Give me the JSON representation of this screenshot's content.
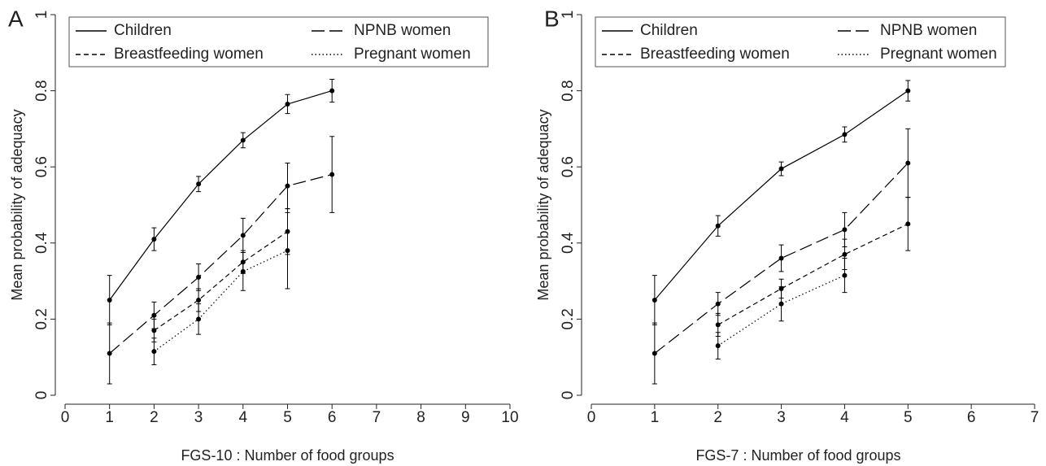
{
  "chart_data": [
    {
      "type": "line",
      "panel_label": "A",
      "xlabel": "FGS-10 : Number of food groups",
      "ylabel": "Mean probability of adequacy",
      "x": [
        1,
        2,
        3,
        4,
        5,
        6
      ],
      "series": [
        {
          "name": "Children",
          "color": "#000000",
          "line_style": "solid",
          "values": [
            0.25,
            0.41,
            0.555,
            0.67,
            0.765,
            0.8
          ],
          "errors": [
            0.065,
            0.03,
            0.02,
            0.02,
            0.025,
            0.03
          ]
        },
        {
          "name": "NPNB women",
          "color": "#000000",
          "line_style": "longdash",
          "values": [
            0.11,
            0.21,
            0.31,
            0.42,
            0.55,
            0.58
          ],
          "errors": [
            0.08,
            0.035,
            0.035,
            0.045,
            0.06,
            0.1
          ]
        },
        {
          "name": "Breastfeeding women",
          "color": "#000000",
          "line_style": "dash",
          "values": [
            null,
            0.17,
            0.25,
            0.35,
            0.43,
            null
          ],
          "errors": [
            null,
            0.03,
            0.03,
            0.03,
            0.06,
            null
          ]
        },
        {
          "name": "Pregnant women",
          "color": "#000000",
          "line_style": "dot",
          "values": [
            null,
            0.115,
            0.2,
            0.325,
            0.38,
            null
          ],
          "errors": [
            null,
            0.035,
            0.04,
            0.05,
            0.1,
            null
          ]
        }
      ],
      "xlim": [
        0,
        10
      ],
      "xticks": [
        0,
        1,
        2,
        3,
        4,
        5,
        6,
        7,
        8,
        9,
        10
      ],
      "ylim": [
        0,
        1
      ],
      "yticks": [
        0,
        0.2,
        0.4,
        0.6,
        0.8,
        1
      ],
      "legend": "top-left"
    },
    {
      "type": "line",
      "panel_label": "B",
      "xlabel": "FGS-7 : Number of food groups",
      "ylabel": "Mean probability of adequacy",
      "x": [
        1,
        2,
        3,
        4,
        5
      ],
      "series": [
        {
          "name": "Children",
          "color": "#000000",
          "line_style": "solid",
          "values": [
            0.25,
            0.445,
            0.595,
            0.685,
            0.8
          ],
          "errors": [
            0.065,
            0.027,
            0.018,
            0.02,
            0.027
          ]
        },
        {
          "name": "NPNB women",
          "color": "#000000",
          "line_style": "longdash",
          "values": [
            0.11,
            0.24,
            0.36,
            0.435,
            0.61
          ],
          "errors": [
            0.08,
            0.03,
            0.035,
            0.045,
            0.09
          ]
        },
        {
          "name": "Breastfeeding women",
          "color": "#000000",
          "line_style": "dash",
          "values": [
            null,
            0.185,
            0.28,
            0.37,
            0.45
          ],
          "errors": [
            null,
            0.03,
            0.025,
            0.04,
            0.07
          ]
        },
        {
          "name": "Pregnant women",
          "color": "#000000",
          "line_style": "dot",
          "values": [
            null,
            0.13,
            0.24,
            0.315,
            null
          ],
          "errors": [
            null,
            0.035,
            0.045,
            0.045,
            null
          ]
        }
      ],
      "xlim": [
        0,
        7
      ],
      "xticks": [
        0,
        1,
        2,
        3,
        4,
        5,
        6,
        7
      ],
      "ylim": [
        0,
        1
      ],
      "yticks": [
        0,
        0.2,
        0.4,
        0.6,
        0.8,
        1
      ],
      "legend": "top-left"
    }
  ]
}
